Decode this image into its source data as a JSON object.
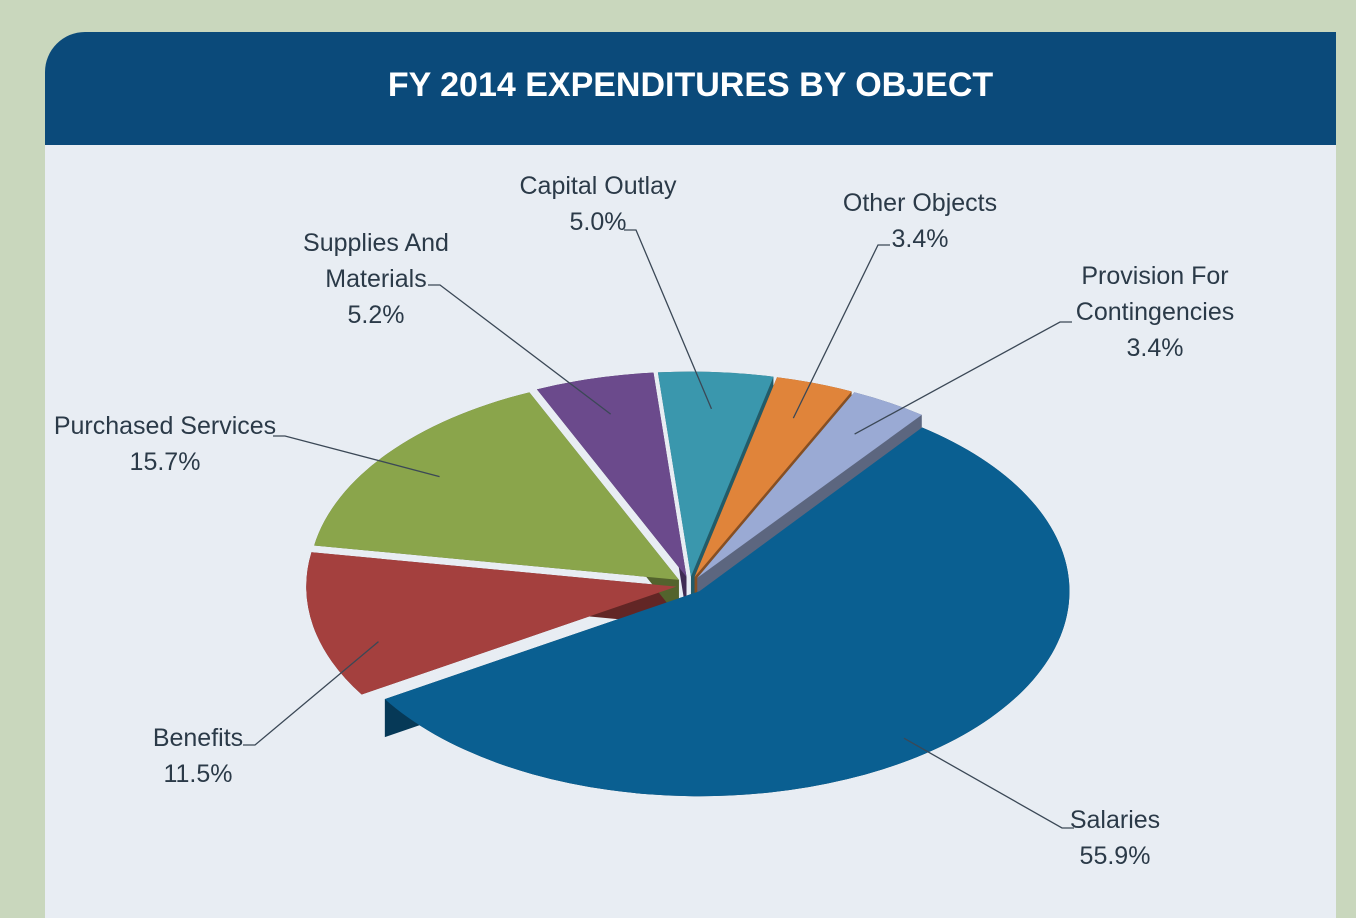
{
  "chart_data": {
    "type": "pie",
    "title": "FY 2014 EXPENDITURES BY OBJECT",
    "categories": [
      "Salaries",
      "Benefits",
      "Purchased Services",
      "Supplies And Materials",
      "Capital Outlay",
      "Other Objects",
      "Provision For Contingencies"
    ],
    "values": [
      55.9,
      11.5,
      15.7,
      5.2,
      5.0,
      3.4,
      3.4
    ],
    "value_labels": [
      "55.9%",
      "11.5%",
      "15.7%",
      "5.2%",
      "5.0%",
      "3.4%",
      "3.4%"
    ],
    "colors": [
      "#0a5f91",
      "#a4403e",
      "#8aa54b",
      "#6b4a8c",
      "#3a97ad",
      "#e0843a",
      "#9aaad4"
    ]
  }
}
